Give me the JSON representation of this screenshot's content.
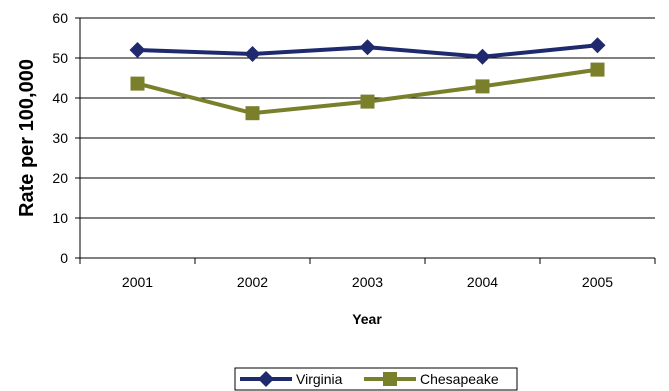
{
  "chart_data": {
    "type": "line",
    "title": "",
    "xlabel": "Year",
    "ylabel": "Rate per 100,000",
    "categories": [
      "2001",
      "2002",
      "2003",
      "2004",
      "2005"
    ],
    "ylim": [
      0,
      60
    ],
    "yticks": [
      "0",
      "10",
      "20",
      "30",
      "40",
      "50",
      "60"
    ],
    "grid": "horizontal",
    "legend_position": "bottom",
    "series": [
      {
        "name": "Virginia",
        "values": [
          52.0,
          51.0,
          52.7,
          50.3,
          53.2
        ],
        "color": "#1f2a6e",
        "marker": "diamond"
      },
      {
        "name": "Chesapeake",
        "values": [
          43.6,
          36.2,
          39.1,
          42.9,
          47.1
        ],
        "color": "#7a7f2c",
        "marker": "square"
      }
    ]
  }
}
